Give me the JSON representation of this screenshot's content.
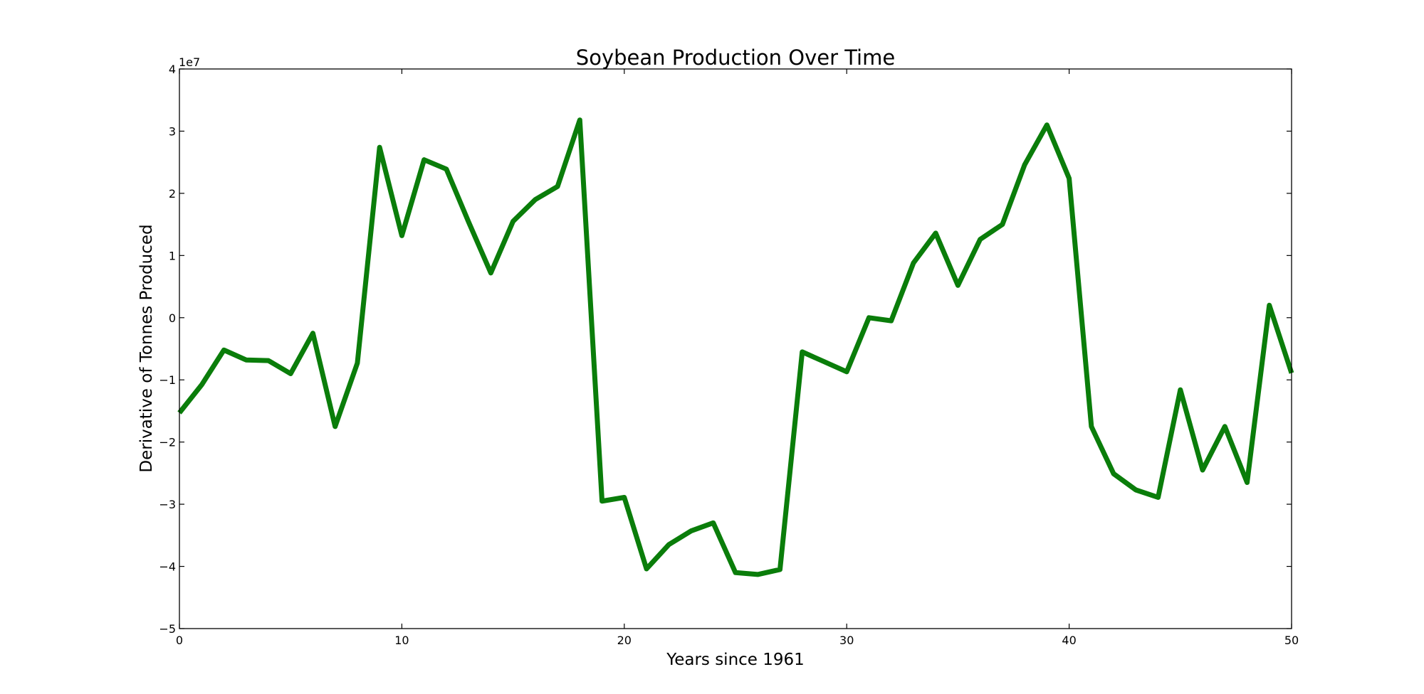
{
  "chart_data": {
    "type": "line",
    "title": "Soybean Production Over Time",
    "xlabel": "Years since 1961",
    "ylabel": "Derivative of Tonnes Produced",
    "y_offset_label": "1e7",
    "y_scale": 10000000,
    "xlim": [
      0,
      50
    ],
    "ylim": [
      -50000000,
      40000000
    ],
    "x_ticks": [
      0,
      10,
      20,
      30,
      40,
      50
    ],
    "y_ticks": [
      -5,
      -4,
      -3,
      -2,
      -1,
      0,
      1,
      2,
      3,
      4
    ],
    "x_tick_labels": [
      "0",
      "10",
      "20",
      "30",
      "40",
      "50"
    ],
    "y_tick_labels": [
      "−5",
      "−4",
      "−3",
      "−2",
      "−1",
      "0",
      "1",
      "2",
      "3",
      "4"
    ],
    "grid": false,
    "legend": "none",
    "series": [
      {
        "color": "#0a7d0a",
        "x": [
          0,
          1,
          2,
          3,
          4,
          5,
          6,
          7,
          8,
          9,
          10,
          11,
          12,
          13,
          14,
          15,
          16,
          17,
          18,
          19,
          20,
          21,
          22,
          23,
          24,
          25,
          26,
          27,
          28,
          29,
          30,
          31,
          32,
          33,
          34,
          35,
          36,
          37,
          38,
          39,
          40,
          41,
          42,
          43,
          44,
          45,
          46,
          47,
          48,
          49,
          50
        ],
        "y": [
          -15300000,
          -10800000,
          -5200000,
          -6800000,
          -6900000,
          -9000000,
          -2500000,
          -17500000,
          -7300000,
          27400000,
          13200000,
          25400000,
          23900000,
          15400000,
          7200000,
          15500000,
          19000000,
          21100000,
          31800000,
          -29500000,
          -28900000,
          -40400000,
          -36500000,
          -34300000,
          -33000000,
          -41000000,
          -41300000,
          -40500000,
          -5500000,
          -7100000,
          -8700000,
          0,
          -500000,
          8800000,
          13600000,
          5200000,
          12600000,
          15000000,
          24600000,
          31000000,
          22400000,
          -17500000,
          -25100000,
          -27700000,
          -28900000,
          -11600000,
          -24500000,
          -17500000,
          -26500000,
          2000000,
          -8900000
        ]
      }
    ]
  }
}
